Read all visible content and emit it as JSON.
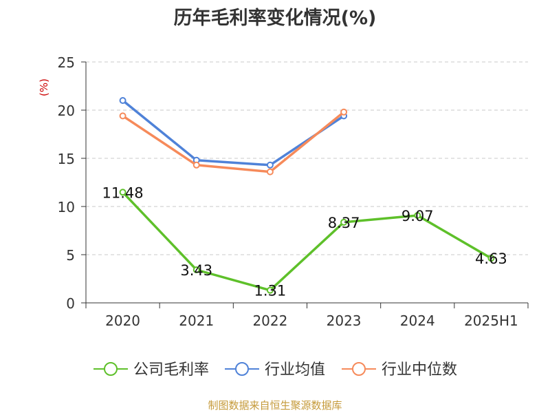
{
  "chart_data": {
    "type": "line",
    "title": "历年毛利率变化情况(%)",
    "ylabel": "(%)",
    "xlabel": "",
    "categories": [
      "2020",
      "2021",
      "2022",
      "2023",
      "2024",
      "2025H1"
    ],
    "ylim": [
      0,
      25
    ],
    "yticks": [
      0,
      5,
      10,
      15,
      20,
      25
    ],
    "grid": true,
    "legend_position": "bottom",
    "series": [
      {
        "name": "公司毛利率",
        "color": "#5ec02a",
        "values": [
          11.48,
          3.43,
          1.31,
          8.37,
          9.07,
          4.63
        ],
        "labels": [
          "11.48",
          "3.43",
          "1.31",
          "8.37",
          "9.07",
          "4.63"
        ]
      },
      {
        "name": "行业均值",
        "color": "#4f82d8",
        "values": [
          21.0,
          14.8,
          14.3,
          19.4,
          null,
          null
        ]
      },
      {
        "name": "行业中位数",
        "color": "#f68a5a",
        "values": [
          19.4,
          14.3,
          13.6,
          19.8,
          null,
          null
        ]
      }
    ]
  },
  "ylabel_color": "#cc0000",
  "source": "制图数据来自恒生聚源数据库"
}
